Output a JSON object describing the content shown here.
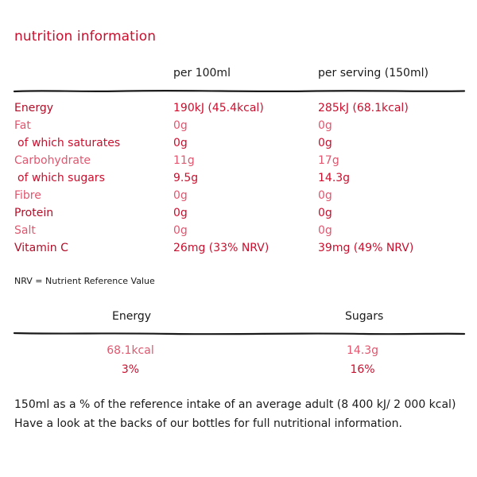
{
  "title": "nutrition information",
  "columns": {
    "per_100ml": "per 100ml",
    "per_serving": "per serving (150ml)"
  },
  "rows": [
    {
      "name": "Energy",
      "per_100ml": "190kJ (45.4kcal)",
      "per_serving": "285kJ (68.1kcal)"
    },
    {
      "name": "Fat",
      "per_100ml": "0g",
      "per_serving": "0g"
    },
    {
      "name": "of which saturates",
      "per_100ml": "0g",
      "per_serving": "0g"
    },
    {
      "name": "Carbohydrate",
      "per_100ml": "11g",
      "per_serving": "17g"
    },
    {
      "name": "of which sugars",
      "per_100ml": "9.5g",
      "per_serving": "14.3g"
    },
    {
      "name": "Fibre",
      "per_100ml": "0g",
      "per_serving": "0g"
    },
    {
      "name": "Protein",
      "per_100ml": "0g",
      "per_serving": "0g"
    },
    {
      "name": "Salt",
      "per_100ml": "0g",
      "per_serving": "0g"
    },
    {
      "name": "Vitamin C",
      "per_100ml": "26mg (33% NRV)",
      "per_serving": "39mg (49% NRV)"
    }
  ],
  "nrv_note": "NRV = Nutrient Reference Value",
  "reference_intake": {
    "energy": {
      "label": "Energy",
      "value": "68.1kcal",
      "percent": "3%"
    },
    "sugars": {
      "label": "Sugars",
      "value": "14.3g",
      "percent": "16%"
    }
  },
  "footer": {
    "line1": "150ml as a % of the reference intake of an average adult (8 400 kJ/ 2 000 kcal)",
    "line2": "Have a look at the backs of our bottles for full nutritional information."
  },
  "colors": {
    "accent": "#c8102e",
    "accent_light": "#e0576f",
    "text": "#1a1a1a"
  }
}
